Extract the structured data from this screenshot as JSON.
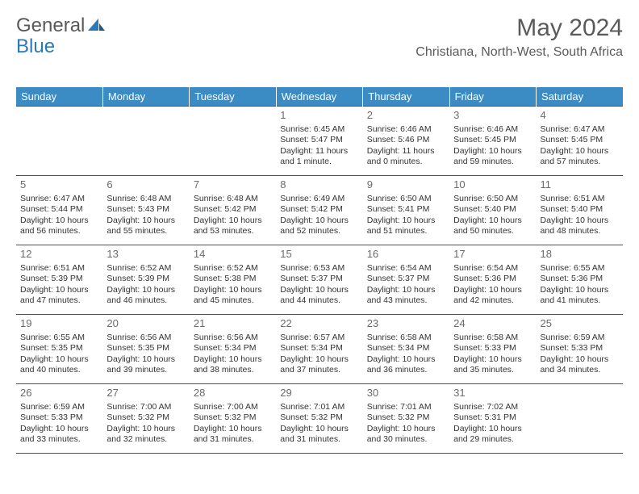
{
  "logo": {
    "text1": "General",
    "text2": "Blue"
  },
  "title": "May 2024",
  "location": "Christiana, North-West, South Africa",
  "day_headers": [
    "Sunday",
    "Monday",
    "Tuesday",
    "Wednesday",
    "Thursday",
    "Friday",
    "Saturday"
  ],
  "colors": {
    "header_bg": "#3b8bc5",
    "header_text": "#ffffff",
    "border": "#2a5a7a",
    "logo_gray": "#5a5a5a",
    "logo_blue": "#2a7ab8"
  },
  "weeks": [
    [
      null,
      null,
      null,
      {
        "d": "1",
        "sr": "6:45 AM",
        "ss": "5:47 PM",
        "dl": "11 hours and 1 minute."
      },
      {
        "d": "2",
        "sr": "6:46 AM",
        "ss": "5:46 PM",
        "dl": "11 hours and 0 minutes."
      },
      {
        "d": "3",
        "sr": "6:46 AM",
        "ss": "5:45 PM",
        "dl": "10 hours and 59 minutes."
      },
      {
        "d": "4",
        "sr": "6:47 AM",
        "ss": "5:45 PM",
        "dl": "10 hours and 57 minutes."
      }
    ],
    [
      {
        "d": "5",
        "sr": "6:47 AM",
        "ss": "5:44 PM",
        "dl": "10 hours and 56 minutes."
      },
      {
        "d": "6",
        "sr": "6:48 AM",
        "ss": "5:43 PM",
        "dl": "10 hours and 55 minutes."
      },
      {
        "d": "7",
        "sr": "6:48 AM",
        "ss": "5:42 PM",
        "dl": "10 hours and 53 minutes."
      },
      {
        "d": "8",
        "sr": "6:49 AM",
        "ss": "5:42 PM",
        "dl": "10 hours and 52 minutes."
      },
      {
        "d": "9",
        "sr": "6:50 AM",
        "ss": "5:41 PM",
        "dl": "10 hours and 51 minutes."
      },
      {
        "d": "10",
        "sr": "6:50 AM",
        "ss": "5:40 PM",
        "dl": "10 hours and 50 minutes."
      },
      {
        "d": "11",
        "sr": "6:51 AM",
        "ss": "5:40 PM",
        "dl": "10 hours and 48 minutes."
      }
    ],
    [
      {
        "d": "12",
        "sr": "6:51 AM",
        "ss": "5:39 PM",
        "dl": "10 hours and 47 minutes."
      },
      {
        "d": "13",
        "sr": "6:52 AM",
        "ss": "5:39 PM",
        "dl": "10 hours and 46 minutes."
      },
      {
        "d": "14",
        "sr": "6:52 AM",
        "ss": "5:38 PM",
        "dl": "10 hours and 45 minutes."
      },
      {
        "d": "15",
        "sr": "6:53 AM",
        "ss": "5:37 PM",
        "dl": "10 hours and 44 minutes."
      },
      {
        "d": "16",
        "sr": "6:54 AM",
        "ss": "5:37 PM",
        "dl": "10 hours and 43 minutes."
      },
      {
        "d": "17",
        "sr": "6:54 AM",
        "ss": "5:36 PM",
        "dl": "10 hours and 42 minutes."
      },
      {
        "d": "18",
        "sr": "6:55 AM",
        "ss": "5:36 PM",
        "dl": "10 hours and 41 minutes."
      }
    ],
    [
      {
        "d": "19",
        "sr": "6:55 AM",
        "ss": "5:35 PM",
        "dl": "10 hours and 40 minutes."
      },
      {
        "d": "20",
        "sr": "6:56 AM",
        "ss": "5:35 PM",
        "dl": "10 hours and 39 minutes."
      },
      {
        "d": "21",
        "sr": "6:56 AM",
        "ss": "5:34 PM",
        "dl": "10 hours and 38 minutes."
      },
      {
        "d": "22",
        "sr": "6:57 AM",
        "ss": "5:34 PM",
        "dl": "10 hours and 37 minutes."
      },
      {
        "d": "23",
        "sr": "6:58 AM",
        "ss": "5:34 PM",
        "dl": "10 hours and 36 minutes."
      },
      {
        "d": "24",
        "sr": "6:58 AM",
        "ss": "5:33 PM",
        "dl": "10 hours and 35 minutes."
      },
      {
        "d": "25",
        "sr": "6:59 AM",
        "ss": "5:33 PM",
        "dl": "10 hours and 34 minutes."
      }
    ],
    [
      {
        "d": "26",
        "sr": "6:59 AM",
        "ss": "5:33 PM",
        "dl": "10 hours and 33 minutes."
      },
      {
        "d": "27",
        "sr": "7:00 AM",
        "ss": "5:32 PM",
        "dl": "10 hours and 32 minutes."
      },
      {
        "d": "28",
        "sr": "7:00 AM",
        "ss": "5:32 PM",
        "dl": "10 hours and 31 minutes."
      },
      {
        "d": "29",
        "sr": "7:01 AM",
        "ss": "5:32 PM",
        "dl": "10 hours and 31 minutes."
      },
      {
        "d": "30",
        "sr": "7:01 AM",
        "ss": "5:32 PM",
        "dl": "10 hours and 30 minutes."
      },
      {
        "d": "31",
        "sr": "7:02 AM",
        "ss": "5:31 PM",
        "dl": "10 hours and 29 minutes."
      },
      null
    ]
  ],
  "labels": {
    "sunrise": "Sunrise: ",
    "sunset": "Sunset: ",
    "daylight": "Daylight: "
  }
}
